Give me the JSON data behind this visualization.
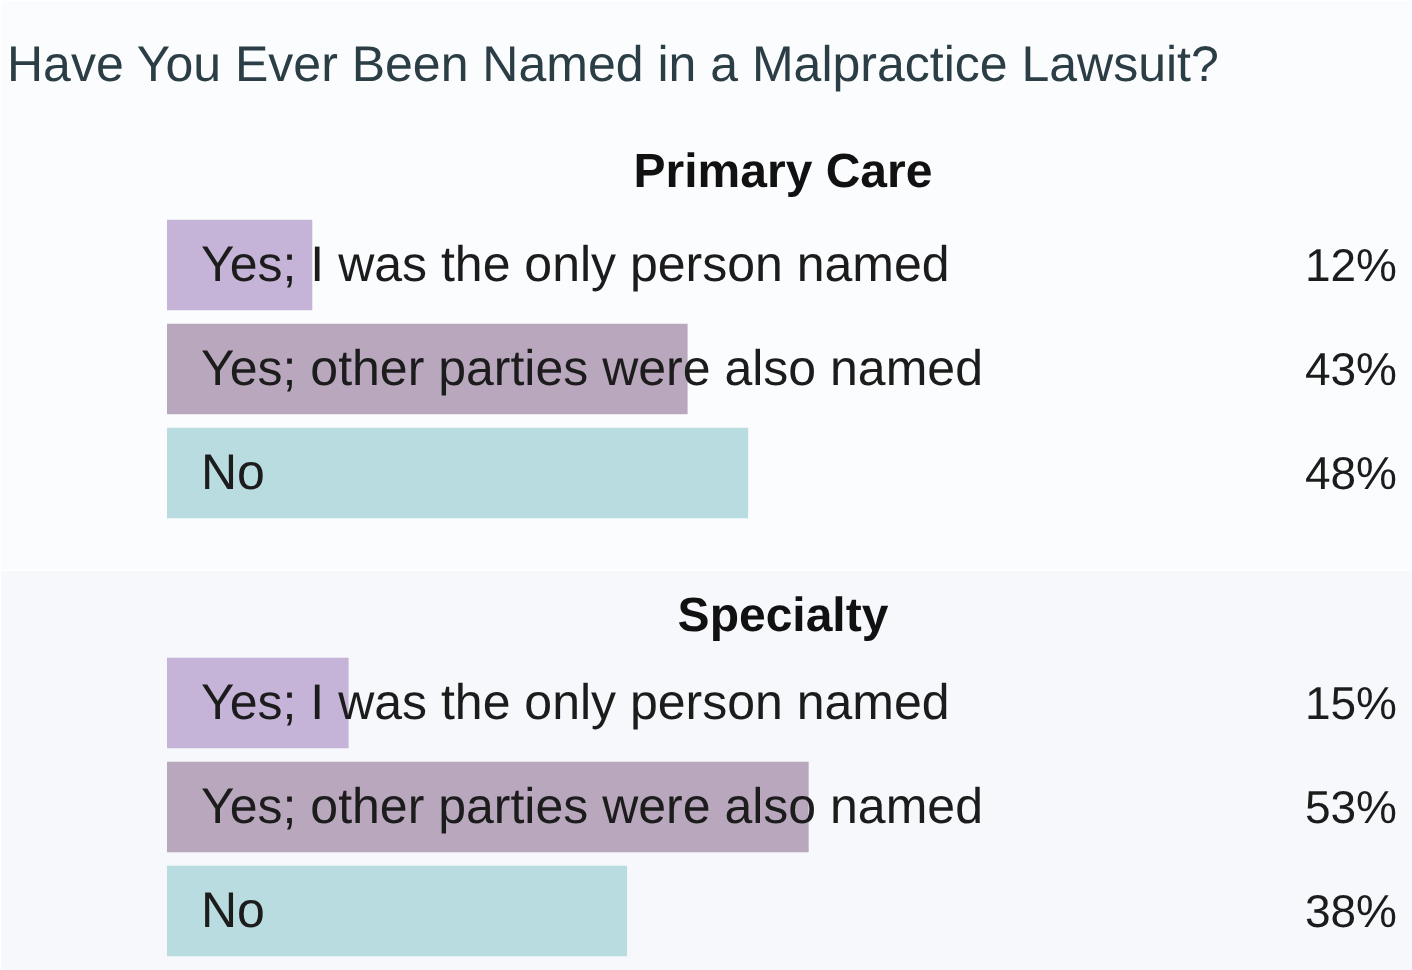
{
  "chart_data": [
    {
      "type": "bar",
      "orientation": "horizontal",
      "title": "Have You Ever Been Named in a Malpractice Lawsuit?",
      "subtitle": "Primary Care",
      "categories": [
        "Yes; I was the only person named",
        "Yes; other parties were also named",
        "No"
      ],
      "values": [
        12,
        43,
        48
      ],
      "value_labels": [
        "12%",
        "43%",
        "48%"
      ],
      "colors": [
        "#c5b4d8",
        "#b9a8bd",
        "#b8dcdf"
      ],
      "tick_labels": "y"
    },
    {
      "type": "bar",
      "orientation": "horizontal",
      "title": "Specialty",
      "categories": [
        "Yes; I was the only person named",
        "Yes; other parties were also named",
        "No"
      ],
      "values": [
        15,
        53,
        38
      ],
      "value_labels": [
        "15%",
        "53%",
        "38%"
      ],
      "colors": [
        "#c5b4d8",
        "#b9a8bd",
        "#b8dcdf"
      ],
      "tick_labels": "y"
    }
  ]
}
